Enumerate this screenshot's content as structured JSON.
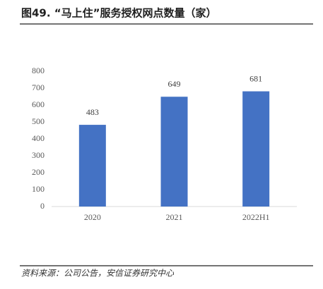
{
  "chart_data": {
    "type": "bar",
    "title": "图49. “马上住”服务授权网点数量（家）",
    "categories": [
      "2020",
      "2021",
      "2022H1"
    ],
    "values": [
      483,
      649,
      681
    ],
    "color": "#4472c4",
    "ylim": [
      0,
      800
    ],
    "yticks": [
      0,
      100,
      200,
      300,
      400,
      500,
      600,
      700,
      800
    ],
    "grid": false,
    "source": "资料来源：公司公告，安信证券研究中心"
  }
}
